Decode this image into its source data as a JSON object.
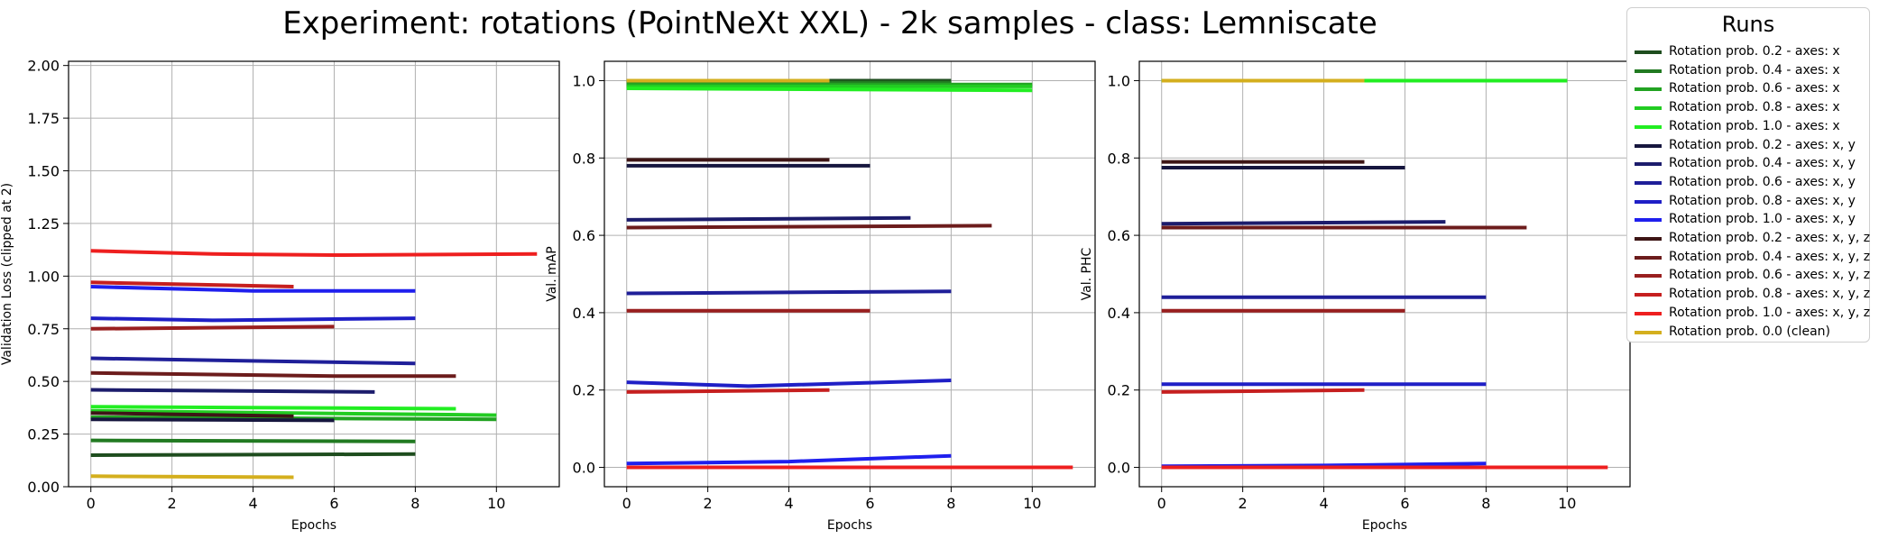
{
  "suptitle": "Experiment: rotations (PointNeXt XXL) - 2k samples - class: Lemniscate",
  "chart_data": [
    {
      "type": "line",
      "xlabel": "Epochs",
      "ylabel": "Validation Loss (clipped at 2)",
      "xlim": [
        -0.55,
        11.55
      ],
      "ylim": [
        0.0,
        2.02
      ],
      "xticks": [
        0,
        2,
        4,
        6,
        8,
        10
      ],
      "yticks": [
        0.0,
        0.25,
        0.5,
        0.75,
        1.0,
        1.25,
        1.5,
        1.75,
        2.0
      ],
      "ytick_labels": [
        "0.00",
        "0.25",
        "0.50",
        "0.75",
        "1.00",
        "1.25",
        "1.50",
        "1.75",
        "2.00"
      ],
      "grid": true,
      "series": [
        {
          "name": "Rotation prob. 0.2 - axes: x",
          "x": [
            0,
            8
          ],
          "y": [
            0.15,
            0.155
          ]
        },
        {
          "name": "Rotation prob. 0.4 - axes: x",
          "x": [
            0,
            8
          ],
          "y": [
            0.22,
            0.215
          ]
        },
        {
          "name": "Rotation prob. 0.6 - axes: x",
          "x": [
            0,
            10
          ],
          "y": [
            0.33,
            0.32
          ]
        },
        {
          "name": "Rotation prob. 0.8 - axes: x",
          "x": [
            0,
            10
          ],
          "y": [
            0.36,
            0.34
          ]
        },
        {
          "name": "Rotation prob. 1.0 - axes: x",
          "x": [
            0,
            9
          ],
          "y": [
            0.38,
            0.37
          ]
        },
        {
          "name": "Rotation prob. 0.2 - axes: x, y",
          "x": [
            0,
            6
          ],
          "y": [
            0.32,
            0.315
          ]
        },
        {
          "name": "Rotation prob. 0.4 - axes: x, y",
          "x": [
            0,
            7
          ],
          "y": [
            0.46,
            0.45
          ]
        },
        {
          "name": "Rotation prob. 0.6 - axes: x, y",
          "x": [
            0,
            8
          ],
          "y": [
            0.61,
            0.585
          ]
        },
        {
          "name": "Rotation prob. 0.8 - axes: x, y",
          "x": [
            0,
            3,
            8
          ],
          "y": [
            0.8,
            0.79,
            0.8
          ]
        },
        {
          "name": "Rotation prob. 1.0 - axes: x, y",
          "x": [
            0,
            4,
            8
          ],
          "y": [
            0.95,
            0.93,
            0.93
          ]
        },
        {
          "name": "Rotation prob. 0.2 - axes: x, y, z",
          "x": [
            0,
            5
          ],
          "y": [
            0.35,
            0.335
          ]
        },
        {
          "name": "Rotation prob. 0.4 - axes: x, y, z",
          "x": [
            0,
            6,
            9
          ],
          "y": [
            0.54,
            0.525,
            0.525
          ]
        },
        {
          "name": "Rotation prob. 0.6 - axes: x, y, z",
          "x": [
            0,
            6
          ],
          "y": [
            0.75,
            0.76
          ]
        },
        {
          "name": "Rotation prob. 0.8 - axes: x, y, z",
          "x": [
            0,
            5
          ],
          "y": [
            0.97,
            0.95
          ]
        },
        {
          "name": "Rotation prob. 1.0 - axes: x, y, z",
          "x": [
            0,
            3,
            6,
            11
          ],
          "y": [
            1.12,
            1.105,
            1.1,
            1.105
          ]
        },
        {
          "name": "Rotation prob. 0.0 (clean)",
          "x": [
            0,
            5
          ],
          "y": [
            0.05,
            0.045
          ]
        }
      ]
    },
    {
      "type": "line",
      "xlabel": "Epochs",
      "ylabel": "Val. mAP",
      "xlim": [
        -0.55,
        11.55
      ],
      "ylim": [
        -0.05,
        1.05
      ],
      "xticks": [
        0,
        2,
        4,
        6,
        8,
        10
      ],
      "yticks": [
        0.0,
        0.2,
        0.4,
        0.6,
        0.8,
        1.0
      ],
      "ytick_labels": [
        "0.0",
        "0.2",
        "0.4",
        "0.6",
        "0.8",
        "1.0"
      ],
      "grid": true,
      "series": [
        {
          "name": "Rotation prob. 0.2 - axes: x",
          "x": [
            0,
            8
          ],
          "y": [
            1.0,
            1.0
          ]
        },
        {
          "name": "Rotation prob. 0.4 - axes: x",
          "x": [
            0,
            8
          ],
          "y": [
            0.995,
            0.995
          ]
        },
        {
          "name": "Rotation prob. 0.6 - axes: x",
          "x": [
            0,
            10
          ],
          "y": [
            0.99,
            0.99
          ]
        },
        {
          "name": "Rotation prob. 0.8 - axes: x",
          "x": [
            0,
            10
          ],
          "y": [
            0.985,
            0.985
          ]
        },
        {
          "name": "Rotation prob. 1.0 - axes: x",
          "x": [
            0,
            10
          ],
          "y": [
            0.98,
            0.975
          ]
        },
        {
          "name": "Rotation prob. 0.2 - axes: x, y",
          "x": [
            0,
            6
          ],
          "y": [
            0.78,
            0.78
          ]
        },
        {
          "name": "Rotation prob. 0.4 - axes: x, y",
          "x": [
            0,
            7
          ],
          "y": [
            0.64,
            0.645
          ]
        },
        {
          "name": "Rotation prob. 0.6 - axes: x, y",
          "x": [
            0,
            8
          ],
          "y": [
            0.45,
            0.455
          ]
        },
        {
          "name": "Rotation prob. 0.8 - axes: x, y",
          "x": [
            0,
            3,
            8
          ],
          "y": [
            0.22,
            0.21,
            0.225
          ]
        },
        {
          "name": "Rotation prob. 1.0 - axes: x, y",
          "x": [
            0,
            4,
            8
          ],
          "y": [
            0.01,
            0.015,
            0.03
          ]
        },
        {
          "name": "Rotation prob. 0.2 - axes: x, y, z",
          "x": [
            0,
            5
          ],
          "y": [
            0.795,
            0.795
          ]
        },
        {
          "name": "Rotation prob. 0.4 - axes: x, y, z",
          "x": [
            0,
            9
          ],
          "y": [
            0.62,
            0.625
          ]
        },
        {
          "name": "Rotation prob. 0.6 - axes: x, y, z",
          "x": [
            0,
            6
          ],
          "y": [
            0.405,
            0.405
          ]
        },
        {
          "name": "Rotation prob. 0.8 - axes: x, y, z",
          "x": [
            0,
            5
          ],
          "y": [
            0.195,
            0.2
          ]
        },
        {
          "name": "Rotation prob. 1.0 - axes: x, y, z",
          "x": [
            0,
            11
          ],
          "y": [
            0.0,
            0.0
          ]
        },
        {
          "name": "Rotation prob. 0.0 (clean)",
          "x": [
            0,
            5
          ],
          "y": [
            1.0,
            1.0
          ]
        }
      ]
    },
    {
      "type": "line",
      "xlabel": "Epochs",
      "ylabel": "Val. PHC",
      "xlim": [
        -0.55,
        11.55
      ],
      "ylim": [
        -0.05,
        1.05
      ],
      "xticks": [
        0,
        2,
        4,
        6,
        8,
        10
      ],
      "yticks": [
        0.0,
        0.2,
        0.4,
        0.6,
        0.8,
        1.0
      ],
      "ytick_labels": [
        "0.0",
        "0.2",
        "0.4",
        "0.6",
        "0.8",
        "1.0"
      ],
      "grid": true,
      "series": [
        {
          "name": "Rotation prob. 0.2 - axes: x",
          "x": [
            0,
            8
          ],
          "y": [
            1.0,
            1.0
          ]
        },
        {
          "name": "Rotation prob. 0.4 - axes: x",
          "x": [
            0,
            8
          ],
          "y": [
            1.0,
            1.0
          ]
        },
        {
          "name": "Rotation prob. 0.6 - axes: x",
          "x": [
            0,
            10
          ],
          "y": [
            1.0,
            1.0
          ]
        },
        {
          "name": "Rotation prob. 0.8 - axes: x",
          "x": [
            0,
            10
          ],
          "y": [
            1.0,
            1.0
          ]
        },
        {
          "name": "Rotation prob. 1.0 - axes: x",
          "x": [
            0,
            10
          ],
          "y": [
            1.0,
            1.0
          ]
        },
        {
          "name": "Rotation prob. 0.2 - axes: x, y",
          "x": [
            0,
            6
          ],
          "y": [
            0.775,
            0.775
          ]
        },
        {
          "name": "Rotation prob. 0.4 - axes: x, y",
          "x": [
            0,
            7
          ],
          "y": [
            0.63,
            0.635
          ]
        },
        {
          "name": "Rotation prob. 0.6 - axes: x, y",
          "x": [
            0,
            8
          ],
          "y": [
            0.44,
            0.44
          ]
        },
        {
          "name": "Rotation prob. 0.8 - axes: x, y",
          "x": [
            0,
            8
          ],
          "y": [
            0.215,
            0.215
          ]
        },
        {
          "name": "Rotation prob. 1.0 - axes: x, y",
          "x": [
            0,
            4,
            8
          ],
          "y": [
            0.003,
            0.005,
            0.01
          ]
        },
        {
          "name": "Rotation prob. 0.2 - axes: x, y, z",
          "x": [
            0,
            5
          ],
          "y": [
            0.79,
            0.79
          ]
        },
        {
          "name": "Rotation prob. 0.4 - axes: x, y, z",
          "x": [
            0,
            9
          ],
          "y": [
            0.62,
            0.62
          ]
        },
        {
          "name": "Rotation prob. 0.6 - axes: x, y, z",
          "x": [
            0,
            6
          ],
          "y": [
            0.405,
            0.405
          ]
        },
        {
          "name": "Rotation prob. 0.8 - axes: x, y, z",
          "x": [
            0,
            5
          ],
          "y": [
            0.195,
            0.2
          ]
        },
        {
          "name": "Rotation prob. 1.0 - axes: x, y, z",
          "x": [
            0,
            11
          ],
          "y": [
            0.0,
            0.0
          ]
        },
        {
          "name": "Rotation prob. 0.0 (clean)",
          "x": [
            0,
            5
          ],
          "y": [
            1.0,
            1.0
          ]
        }
      ]
    }
  ],
  "legend": {
    "title": "Runs",
    "placement": "outside-right",
    "entries": [
      {
        "label": "Rotation prob. 0.2 - axes: x",
        "color": "#1e4d1e"
      },
      {
        "label": "Rotation prob. 0.4 - axes: x",
        "color": "#217a21"
      },
      {
        "label": "Rotation prob. 0.6 - axes: x",
        "color": "#22a322"
      },
      {
        "label": "Rotation prob. 0.8 - axes: x",
        "color": "#22cc22"
      },
      {
        "label": "Rotation prob. 1.0 - axes: x",
        "color": "#22ee22"
      },
      {
        "label": "Rotation prob. 0.2 - axes: x, y",
        "color": "#16163e"
      },
      {
        "label": "Rotation prob. 0.4 - axes: x, y",
        "color": "#1c1c6c"
      },
      {
        "label": "Rotation prob. 0.6 - axes: x, y",
        "color": "#1f1f99"
      },
      {
        "label": "Rotation prob. 0.8 - axes: x, y",
        "color": "#1f1fc6"
      },
      {
        "label": "Rotation prob. 1.0 - axes: x, y",
        "color": "#1f1fee"
      },
      {
        "label": "Rotation prob. 0.2 - axes: x, y, z",
        "color": "#3e1616"
      },
      {
        "label": "Rotation prob. 0.4 - axes: x, y, z",
        "color": "#6c1c1c"
      },
      {
        "label": "Rotation prob. 0.6 - axes: x, y, z",
        "color": "#991f1f"
      },
      {
        "label": "Rotation prob. 0.8 - axes: x, y, z",
        "color": "#c61f1f"
      },
      {
        "label": "Rotation prob. 1.0 - axes: x, y, z",
        "color": "#ee1f1f"
      },
      {
        "label": "Rotation prob. 0.0 (clean)",
        "color": "#d4af1e"
      }
    ]
  }
}
